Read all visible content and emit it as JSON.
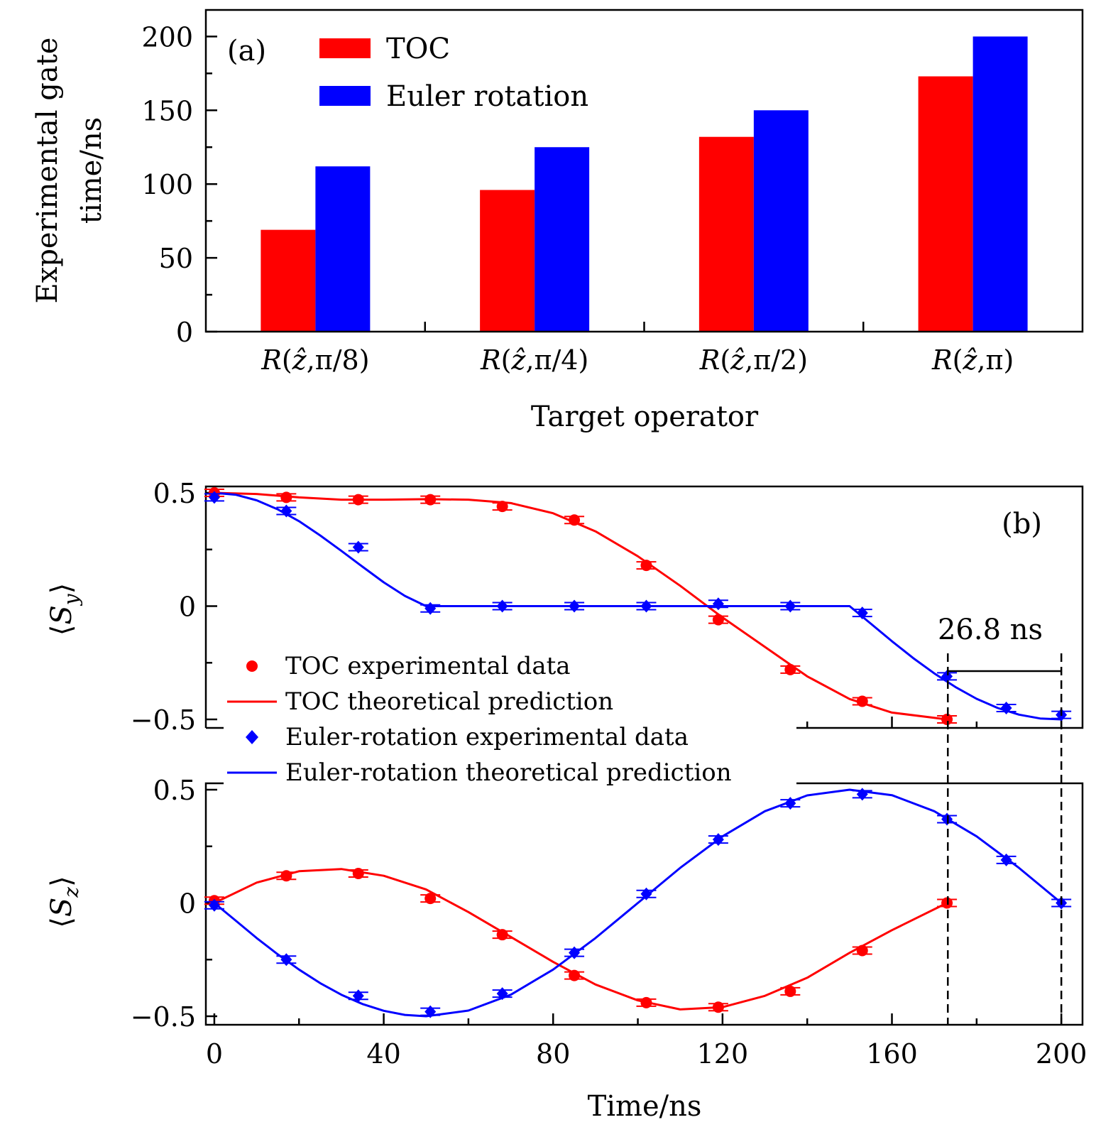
{
  "colors": {
    "toc": "#ff0000",
    "euler": "#0000ff",
    "axis": "#000000"
  },
  "chart_data": [
    {
      "type": "bar",
      "panel_label": "(a)",
      "xlabel": "Target operator",
      "ylabel_lines": [
        "Experimental gate",
        "time/ns"
      ],
      "ylim": [
        0,
        200
      ],
      "yticks": [
        "0",
        "50",
        "100",
        "150",
        "200"
      ],
      "categories": [
        {
          "prefix": "R(",
          "zhat": "ẑ",
          "suffix": ",π/8)"
        },
        {
          "prefix": "R(",
          "zhat": "ẑ",
          "suffix": ",π/4)"
        },
        {
          "prefix": "R(",
          "zhat": "ẑ",
          "suffix": ",π/2)"
        },
        {
          "prefix": "R(",
          "zhat": "ẑ",
          "suffix": ",π)"
        }
      ],
      "series": [
        {
          "name": "TOC",
          "color": "#ff0000",
          "values": [
            69,
            96,
            132,
            173
          ]
        },
        {
          "name": "Euler rotation",
          "color": "#0000ff",
          "values": [
            112,
            125,
            150,
            200
          ]
        }
      ],
      "legend_position": "top-left"
    },
    {
      "type": "line",
      "panel_label": "(b)",
      "xlabel": "Time/ns",
      "xlim": [
        -2,
        205
      ],
      "xticks": [
        "0",
        "40",
        "80",
        "120",
        "160",
        "200"
      ],
      "annotation": "26.8 ns",
      "annotation_span": [
        173.2,
        200
      ],
      "legend": [
        {
          "label": "TOC experimental data",
          "marker": "circle",
          "color": "#ff0000"
        },
        {
          "label": "TOC theoretical prediction",
          "marker": "line",
          "color": "#ff0000"
        },
        {
          "label": "Euler-rotation experimental data",
          "marker": "diamond",
          "color": "#0000ff"
        },
        {
          "label": "Euler-rotation theoretical prediction",
          "marker": "line",
          "color": "#0000ff"
        }
      ],
      "subplots": [
        {
          "ylabel": "⟨S_y⟩",
          "ylabel_main": "S",
          "ylabel_sub": "y",
          "ylim": [
            -0.5,
            0.5
          ],
          "yticks": [
            "0.5",
            "0",
            "−0.5"
          ],
          "series": [
            {
              "name": "TOC experimental data",
              "kind": "points",
              "marker": "circle",
              "color": "#ff0000",
              "x": [
                0,
                17,
                34,
                51,
                68,
                85,
                102,
                119,
                136,
                153,
                173
              ],
              "y": [
                0.5,
                0.48,
                0.47,
                0.47,
                0.44,
                0.38,
                0.18,
                -0.06,
                -0.28,
                -0.42,
                -0.5
              ]
            },
            {
              "name": "TOC theoretical prediction",
              "kind": "line",
              "color": "#ff0000",
              "x": [
                0,
                10,
                20,
                30,
                40,
                50,
                60,
                70,
                80,
                90,
                100,
                110,
                120,
                130,
                140,
                150,
                160,
                173
              ],
              "y": [
                0.5,
                0.495,
                0.48,
                0.47,
                0.47,
                0.472,
                0.47,
                0.455,
                0.41,
                0.33,
                0.22,
                0.09,
                -0.05,
                -0.18,
                -0.31,
                -0.41,
                -0.47,
                -0.5
              ]
            },
            {
              "name": "Euler-rotation experimental data",
              "kind": "points",
              "marker": "diamond",
              "color": "#0000ff",
              "x": [
                0,
                17,
                34,
                51,
                68,
                85,
                102,
                119,
                136,
                153,
                173,
                187,
                200
              ],
              "y": [
                0.48,
                0.42,
                0.26,
                -0.01,
                0.0,
                0.0,
                0.0,
                0.01,
                0.0,
                -0.03,
                -0.31,
                -0.45,
                -0.48
              ]
            },
            {
              "name": "Euler-rotation theoretical prediction",
              "kind": "line",
              "color": "#0000ff",
              "x": [
                0,
                5,
                10,
                15,
                20,
                25,
                30,
                35,
                40,
                45,
                50,
                150,
                155,
                160,
                165,
                170,
                175,
                180,
                185,
                190,
                195,
                200
              ],
              "y": [
                0.5,
                0.492,
                0.467,
                0.427,
                0.375,
                0.312,
                0.244,
                0.174,
                0.105,
                0.045,
                0.0,
                0.0,
                -0.077,
                -0.155,
                -0.229,
                -0.297,
                -0.357,
                -0.409,
                -0.45,
                -0.479,
                -0.496,
                -0.5
              ]
            }
          ]
        },
        {
          "ylabel": "⟨S_z⟩",
          "ylabel_main": "S",
          "ylabel_sub": "z",
          "ylim": [
            -0.5,
            0.5
          ],
          "yticks": [
            "0.5",
            "0",
            "−0.5"
          ],
          "series": [
            {
              "name": "TOC experimental data",
              "kind": "points",
              "marker": "circle",
              "color": "#ff0000",
              "x": [
                0,
                17,
                34,
                51,
                68,
                85,
                102,
                119,
                136,
                153,
                173
              ],
              "y": [
                0.01,
                0.12,
                0.13,
                0.02,
                -0.14,
                -0.32,
                -0.44,
                -0.46,
                -0.39,
                -0.21,
                0.0
              ]
            },
            {
              "name": "TOC theoretical prediction",
              "kind": "line",
              "color": "#ff0000",
              "x": [
                0,
                10,
                20,
                30,
                40,
                50,
                60,
                70,
                80,
                90,
                100,
                110,
                120,
                130,
                140,
                150,
                160,
                173
              ],
              "y": [
                0.0,
                0.09,
                0.14,
                0.15,
                0.12,
                0.06,
                -0.04,
                -0.15,
                -0.26,
                -0.36,
                -0.43,
                -0.47,
                -0.46,
                -0.41,
                -0.33,
                -0.22,
                -0.12,
                0.0
              ]
            },
            {
              "name": "Euler-rotation experimental data",
              "kind": "points",
              "marker": "diamond",
              "color": "#0000ff",
              "x": [
                0,
                17,
                34,
                51,
                68,
                85,
                102,
                119,
                136,
                153,
                173,
                187,
                200
              ],
              "y": [
                -0.01,
                -0.25,
                -0.41,
                -0.48,
                -0.4,
                -0.22,
                0.04,
                0.28,
                0.44,
                0.48,
                0.37,
                0.19,
                0.0
              ]
            },
            {
              "name": "Euler-rotation theoretical prediction",
              "kind": "line",
              "color": "#0000ff",
              "x": [
                0,
                5,
                10,
                15,
                20,
                25,
                30,
                35,
                40,
                45,
                50,
                60,
                70,
                80,
                90,
                100,
                110,
                120,
                130,
                140,
                150,
                160,
                170,
                180,
                190,
                200
              ],
              "y": [
                0.0,
                -0.077,
                -0.155,
                -0.227,
                -0.294,
                -0.354,
                -0.405,
                -0.446,
                -0.476,
                -0.494,
                -0.5,
                -0.475,
                -0.405,
                -0.294,
                -0.155,
                0.0,
                0.155,
                0.294,
                0.405,
                0.475,
                0.5,
                0.476,
                0.405,
                0.294,
                0.155,
                0.0
              ]
            }
          ]
        }
      ]
    }
  ]
}
